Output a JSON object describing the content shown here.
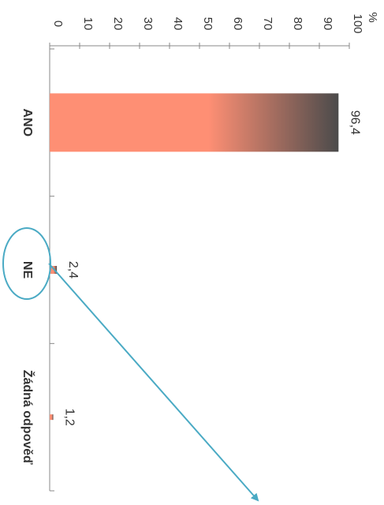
{
  "chart_data": {
    "type": "bar",
    "orientation": "rotated-90-clockwise",
    "categories": [
      "ANO",
      "NE",
      "Žádná odpověď"
    ],
    "values": [
      96.4,
      2.4,
      1.2
    ],
    "data_labels": [
      "96,4",
      "2,4",
      "1,2"
    ],
    "y_unit": "%",
    "ylim": [
      0,
      100
    ],
    "y_ticks": [
      0,
      10,
      20,
      30,
      40,
      50,
      60,
      70,
      80,
      90,
      100
    ],
    "grid": false,
    "legend": "none"
  },
  "colors": {
    "bar_light": "#fe8f74",
    "bar_dark": "#4b4b4b",
    "annotation": "#4aaac4",
    "axis": "#888888"
  },
  "annotation": {
    "highlighted_category": "NE",
    "shape": "ellipse-with-arrow"
  }
}
